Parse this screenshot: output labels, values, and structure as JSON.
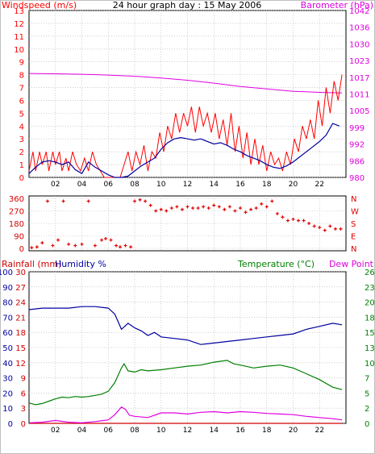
{
  "top": {
    "left_title": "Windspeed (m/s)",
    "center_title": "24 hour graph day : 15 May 2006",
    "right_title": "Barometer (hPa)"
  },
  "bottom": {
    "rainfall_label": "Rainfall (mm)",
    "humidity_label": "Humidity %",
    "temperature_label": "Temperature (°C)",
    "dewpoint_label": "Dew Point"
  },
  "colors": {
    "windspeed": "#ff0000",
    "wind_avg": "#0000a0",
    "barometer": "#e000e0",
    "wind_dir": "#e00000",
    "rainfall": "#d00000",
    "humidity": "#0000a0",
    "temperature": "#008000",
    "dewpoint": "#e000e0",
    "axis_gray": "#b0b0b0"
  },
  "chart_data": [
    {
      "type": "line",
      "title": "24 hour graph day : 15 May 2006",
      "xlabel": "",
      "x_ticks": [
        "02",
        "04",
        "06",
        "08",
        "10",
        "12",
        "14",
        "16",
        "18",
        "20",
        "22"
      ],
      "x_range": [
        0,
        24
      ],
      "ylabel_left": "Windspeed (m/s)",
      "ylim_left": [
        0,
        13
      ],
      "y_ticks_left": [
        "0",
        "1",
        "2",
        "3",
        "4",
        "5",
        "6",
        "7",
        "8",
        "9",
        "10",
        "11",
        "12",
        "13"
      ],
      "ylabel_right": "Barometer (hPa)",
      "ylim_right": [
        980,
        1042
      ],
      "y_ticks_right": [
        "980",
        "986",
        "992",
        "999",
        "1005",
        "1011",
        "1017",
        "1023",
        "1030",
        "1036",
        "1042"
      ],
      "series": [
        {
          "name": "Windspeed (m/s)",
          "axis": "left",
          "x": [
            0,
            0.3,
            0.5,
            0.8,
            1.0,
            1.3,
            1.5,
            1.8,
            2.0,
            2.3,
            2.5,
            2.8,
            3.0,
            3.3,
            3.6,
            3.9,
            4.2,
            4.5,
            4.8,
            5.1,
            5.4,
            5.7,
            6.0,
            6.3,
            6.6,
            6.9,
            7.2,
            7.5,
            7.8,
            8.1,
            8.4,
            8.7,
            9.0,
            9.3,
            9.6,
            9.9,
            10.2,
            10.5,
            10.8,
            11.1,
            11.4,
            11.7,
            12.0,
            12.3,
            12.6,
            12.9,
            13.2,
            13.5,
            13.8,
            14.1,
            14.4,
            14.7,
            15.0,
            15.3,
            15.6,
            15.9,
            16.2,
            16.5,
            16.8,
            17.1,
            17.4,
            17.7,
            18.0,
            18.3,
            18.6,
            18.9,
            19.2,
            19.5,
            19.8,
            20.1,
            20.4,
            20.7,
            21.0,
            21.3,
            21.6,
            21.9,
            22.2,
            22.5,
            22.8,
            23.1,
            23.4,
            23.7
          ],
          "values": [
            0.5,
            2,
            0.5,
            2,
            1,
            2,
            0.5,
            2,
            1,
            2,
            0.5,
            1.5,
            0.5,
            2,
            1,
            0.5,
            1.5,
            0.5,
            2,
            1,
            0.5,
            0,
            0,
            0,
            0,
            0,
            1,
            2,
            0.5,
            2,
            1,
            2.5,
            0.5,
            2,
            1.5,
            3.5,
            2,
            4,
            3,
            5,
            3.5,
            5,
            4,
            5.5,
            3.5,
            5.5,
            4,
            5,
            3.5,
            5,
            3,
            4.5,
            2.5,
            5,
            2,
            4,
            1.5,
            3.5,
            1,
            3,
            1,
            2.5,
            0.5,
            2,
            1,
            1.5,
            0.5,
            2,
            1,
            3,
            2,
            4,
            3,
            4.5,
            3,
            6,
            4,
            7,
            5,
            7.5,
            6,
            8
          ]
        },
        {
          "name": "Windspeed avg",
          "axis": "left",
          "x": [
            0,
            0.5,
            1.0,
            1.5,
            2.0,
            2.5,
            3.0,
            3.5,
            4.0,
            4.5,
            5.0,
            5.5,
            6.0,
            6.5,
            7.0,
            7.5,
            8.0,
            8.5,
            9.0,
            9.5,
            10.0,
            10.5,
            11.0,
            11.5,
            12.0,
            12.5,
            13.0,
            13.5,
            14.0,
            14.5,
            15.0,
            15.5,
            16.0,
            16.5,
            17.0,
            17.5,
            18.0,
            18.5,
            19.0,
            19.5,
            20.0,
            20.5,
            21.0,
            21.5,
            22.0,
            22.5,
            23.0,
            23.5
          ],
          "values": [
            0.3,
            0.8,
            1.2,
            1.3,
            1.2,
            1.0,
            1.2,
            0.6,
            0.3,
            1.2,
            0.8,
            0.5,
            0.2,
            0.0,
            0.0,
            0.1,
            0.5,
            0.9,
            1.2,
            1.5,
            2.2,
            2.7,
            3.0,
            3.1,
            3.0,
            2.9,
            3.0,
            2.8,
            2.6,
            2.7,
            2.5,
            2.2,
            2.0,
            1.7,
            1.5,
            1.3,
            1.0,
            0.8,
            0.7,
            0.9,
            1.2,
            1.6,
            2.0,
            2.4,
            2.8,
            3.3,
            4.2,
            4.0
          ]
        },
        {
          "name": "Barometer (hPa)",
          "axis": "right",
          "x": [
            0,
            2,
            4,
            6,
            8,
            10,
            12,
            14,
            16,
            18,
            20,
            22,
            23.7
          ],
          "values": [
            1018.6,
            1018.5,
            1018.3,
            1018.0,
            1017.6,
            1016.9,
            1016.1,
            1015.0,
            1013.8,
            1012.9,
            1012.0,
            1011.6,
            1011.4
          ]
        }
      ]
    },
    {
      "type": "scatter",
      "title": "",
      "xlabel": "",
      "x_ticks": [
        "02",
        "04",
        "06",
        "08",
        "10",
        "12",
        "14",
        "16",
        "18",
        "20",
        "22"
      ],
      "x_range": [
        0,
        24
      ],
      "ylim": [
        0,
        360
      ],
      "y_ticks_left": [
        "0",
        "90",
        "180",
        "270",
        "360"
      ],
      "y_ticks_right": [
        "N",
        "E",
        "S",
        "W",
        "N"
      ],
      "series": [
        {
          "name": "Wind direction",
          "x": [
            0.2,
            0.6,
            1.0,
            1.4,
            1.8,
            2.2,
            2.6,
            3.0,
            3.5,
            4.0,
            4.5,
            5.0,
            5.5,
            5.8,
            6.2,
            6.6,
            6.9,
            7.3,
            7.7,
            8.0,
            8.4,
            8.8,
            9.2,
            9.6,
            10.0,
            10.4,
            10.8,
            11.2,
            11.6,
            12.0,
            12.4,
            12.8,
            13.2,
            13.6,
            14.0,
            14.4,
            14.8,
            15.2,
            15.6,
            16.0,
            16.4,
            16.8,
            17.2,
            17.6,
            18.0,
            18.4,
            18.8,
            19.2,
            19.6,
            20.0,
            20.4,
            20.8,
            21.2,
            21.6,
            22.0,
            22.4,
            22.8,
            23.2,
            23.6
          ],
          "values": [
            5,
            10,
            40,
            340,
            20,
            60,
            340,
            30,
            20,
            30,
            340,
            20,
            60,
            70,
            60,
            20,
            10,
            20,
            10,
            340,
            350,
            340,
            310,
            270,
            280,
            270,
            290,
            300,
            280,
            300,
            290,
            290,
            300,
            290,
            310,
            300,
            280,
            300,
            270,
            290,
            260,
            280,
            290,
            320,
            300,
            340,
            250,
            225,
            200,
            210,
            200,
            200,
            180,
            160,
            150,
            130,
            160,
            140,
            140
          ]
        }
      ]
    },
    {
      "type": "line",
      "title": "",
      "xlabel": "",
      "x_ticks": [
        "02",
        "04",
        "06",
        "08",
        "10",
        "12",
        "14",
        "16",
        "18",
        "20",
        "22"
      ],
      "x_range": [
        0,
        24
      ],
      "ylabel_left": "Rainfall (mm) / Humidity %",
      "y_ticks_left_rain": [
        "0",
        "3",
        "6",
        "9",
        "12",
        "15",
        "18",
        "21",
        "24",
        "27",
        "30"
      ],
      "y_ticks_left_hum": [
        "0",
        "10",
        "20",
        "30",
        "40",
        "50",
        "60",
        "70",
        "80",
        "90",
        "100"
      ],
      "ylabel_right": "Temperature (°C) / Dew Point",
      "ylim_right": [
        0,
        26
      ],
      "y_ticks_right": [
        "0",
        "2",
        "5",
        "7",
        "10",
        "13",
        "15",
        "18",
        "20",
        "23",
        "26"
      ],
      "series": [
        {
          "name": "Humidity %",
          "axis": "humidity",
          "x": [
            0,
            1,
            2,
            3,
            4,
            5,
            6,
            6.5,
            7,
            7.5,
            8,
            8.5,
            9,
            9.5,
            10,
            11,
            12,
            13,
            14,
            15,
            16,
            17,
            18,
            19,
            20,
            21,
            22,
            23,
            23.7
          ],
          "values": [
            75,
            76,
            76,
            76,
            77,
            77,
            76,
            72,
            62,
            66,
            63,
            61,
            58,
            60,
            57,
            56,
            55,
            52,
            53,
            54,
            55,
            56,
            57,
            58,
            59,
            62,
            64,
            66,
            65
          ]
        },
        {
          "name": "Temperature (°C)",
          "axis": "right",
          "x": [
            0,
            0.5,
            1,
            1.5,
            2,
            2.5,
            3,
            3.5,
            4,
            4.5,
            5,
            5.5,
            6,
            6.5,
            7,
            7.2,
            7.5,
            8,
            8.5,
            9,
            10,
            11,
            12,
            13,
            14,
            15,
            15.5,
            16,
            17,
            18,
            19,
            20,
            21,
            22,
            23,
            23.7
          ],
          "values": [
            3.5,
            3.2,
            3.4,
            3.8,
            4.2,
            4.5,
            4.4,
            4.6,
            4.5,
            4.6,
            4.8,
            5.0,
            5.5,
            7.0,
            9.5,
            10.2,
            9.0,
            8.8,
            9.2,
            9.0,
            9.2,
            9.5,
            9.8,
            10.0,
            10.5,
            10.8,
            10.2,
            10.0,
            9.5,
            9.8,
            10.0,
            9.5,
            8.5,
            7.5,
            6.2,
            5.8
          ]
        },
        {
          "name": "Dew Point",
          "axis": "right",
          "x": [
            0,
            1,
            2,
            3,
            4,
            5,
            6,
            6.5,
            7,
            7.3,
            7.6,
            8,
            9,
            10,
            11,
            12,
            13,
            14,
            15,
            16,
            17,
            18,
            19,
            20,
            21,
            22,
            23,
            23.7
          ],
          "values": [
            0.1,
            0.2,
            0.5,
            0.2,
            0.1,
            0.3,
            0.6,
            1.5,
            2.8,
            2.4,
            1.4,
            1.2,
            1.0,
            1.8,
            1.8,
            1.6,
            1.9,
            2.0,
            1.8,
            2.0,
            1.9,
            1.7,
            1.6,
            1.5,
            1.2,
            1.0,
            0.8,
            0.6
          ]
        },
        {
          "name": "Rainfall (mm)",
          "axis": "rain",
          "x": [
            0,
            23.7
          ],
          "values": [
            0,
            0
          ]
        }
      ]
    }
  ]
}
